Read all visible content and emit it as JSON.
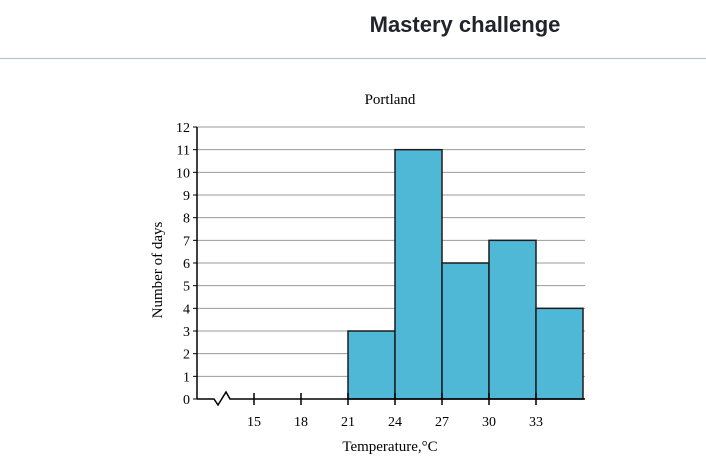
{
  "header": {
    "title": "Mastery challenge"
  },
  "chart_data": {
    "type": "bar",
    "title": "Portland",
    "xlabel": "Temperature,°C",
    "ylabel": "Number of days",
    "ylim": [
      0,
      12
    ],
    "y_ticks": [
      "0",
      "1",
      "2",
      "3",
      "4",
      "5",
      "6",
      "7",
      "8",
      "9",
      "10",
      "11",
      "12"
    ],
    "x_tick_labels": [
      "15",
      "18",
      "21",
      "24",
      "27",
      "30",
      "33"
    ],
    "x_ticks": [
      15,
      18,
      21,
      24,
      27,
      30,
      33
    ],
    "x_axis_break": true,
    "bins": [
      {
        "start": 21,
        "end": 24,
        "value": 3
      },
      {
        "start": 24,
        "end": 27,
        "value": 11
      },
      {
        "start": 27,
        "end": 30,
        "value": 6
      },
      {
        "start": 30,
        "end": 33,
        "value": 7
      },
      {
        "start": 33,
        "end": 36,
        "value": 4
      }
    ],
    "bar_color": "#4fb8d6",
    "grid": true
  }
}
